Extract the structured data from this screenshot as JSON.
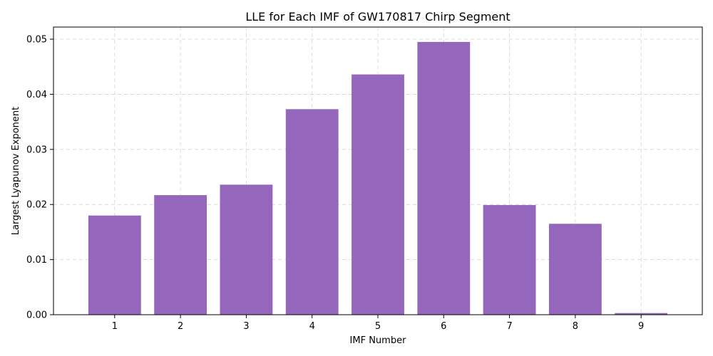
{
  "chart_data": {
    "type": "bar",
    "title": "LLE for Each IMF of GW170817 Chirp Segment",
    "xlabel": "IMF Number",
    "ylabel": "Largest Lyapunov Exponent",
    "categories": [
      "1",
      "2",
      "3",
      "4",
      "5",
      "6",
      "7",
      "8",
      "9"
    ],
    "values": [
      0.018,
      0.0217,
      0.0236,
      0.0373,
      0.0436,
      0.0495,
      0.0199,
      0.0165,
      0.0003
    ],
    "ylim": [
      0,
      0.0522
    ],
    "yticks": [
      "0.00",
      "0.01",
      "0.02",
      "0.03",
      "0.04",
      "0.05"
    ],
    "ytick_values": [
      0,
      0.01,
      0.02,
      0.03,
      0.04,
      0.05
    ],
    "bar_color": "#9467bd",
    "grid": true
  }
}
